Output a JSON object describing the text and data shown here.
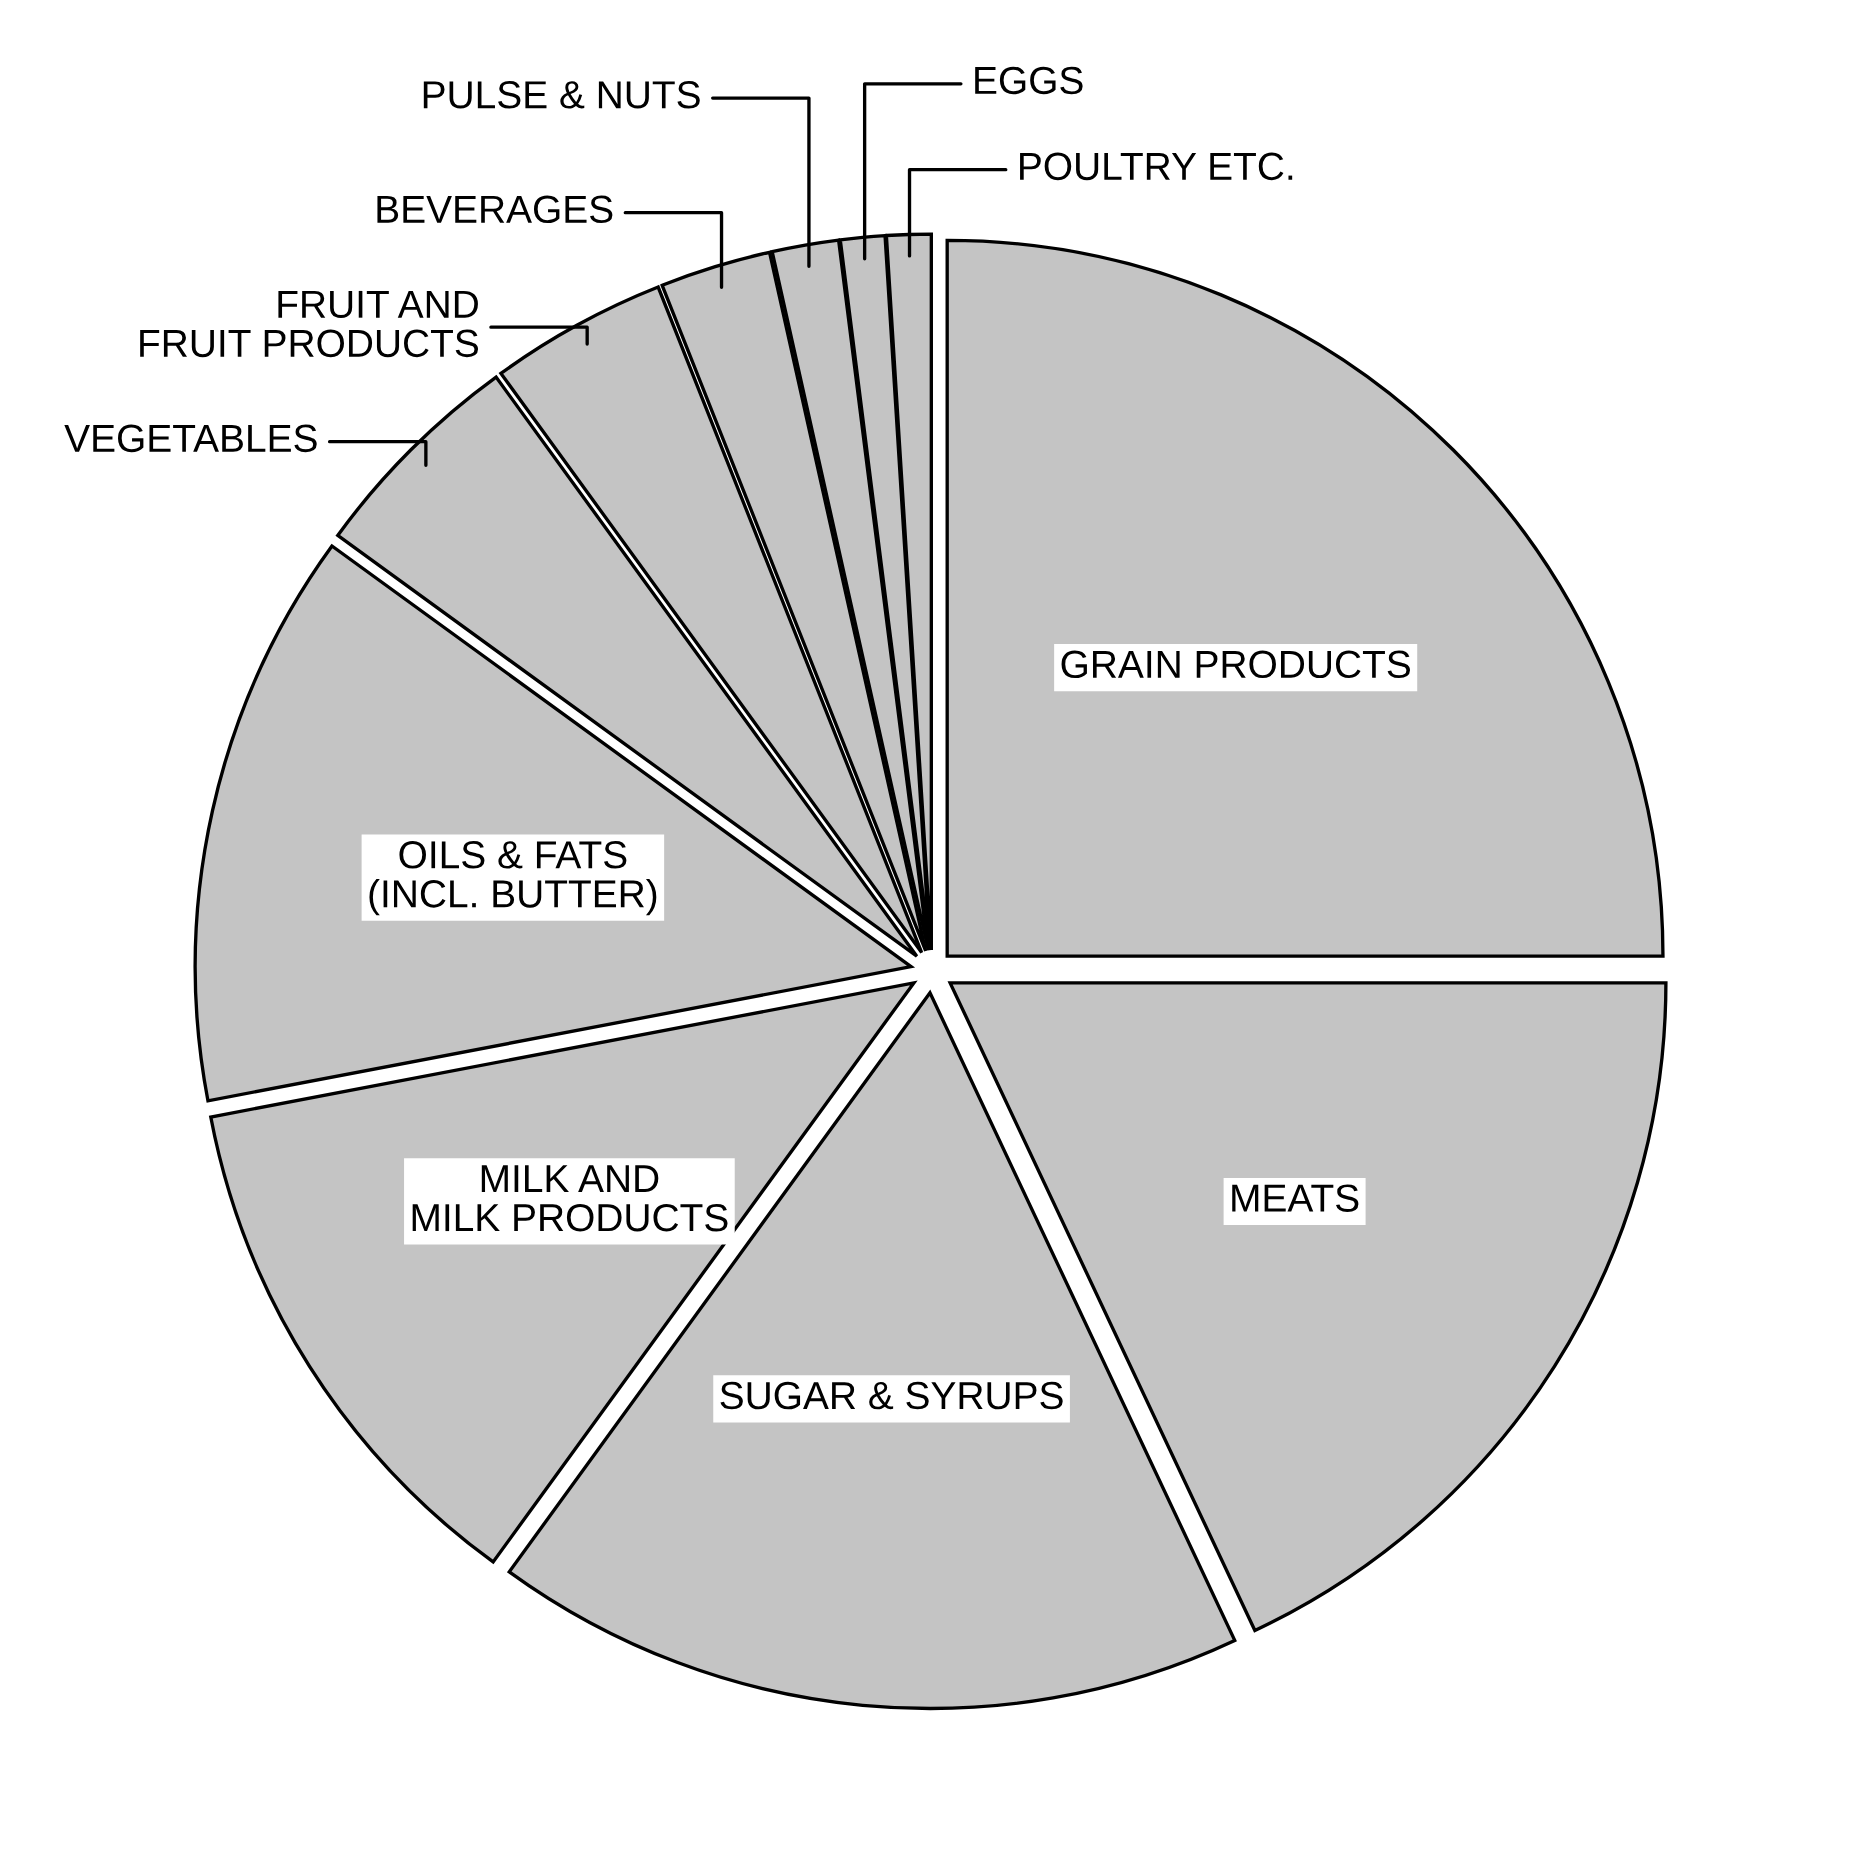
{
  "chart_data": {
    "type": "pie",
    "categories": [
      "GRAIN PRODUCTS",
      "MEATS",
      "SUGAR & SYRUPS",
      "MILK AND\nMILK PRODUCTS",
      "OILS & FATS\n(INCL. BUTTER)",
      "VEGETABLES",
      "FRUIT AND\nFRUIT PRODUCTS",
      "BEVERAGES",
      "PULSE & NUTS",
      "EGGS",
      "POULTRY ETC."
    ],
    "values": [
      25,
      18,
      17,
      12,
      13,
      5,
      4,
      2.5,
      1.5,
      1,
      1
    ],
    "colors": [
      "#c4c4c4",
      "#c4c4c4",
      "#c4c4c4",
      "#c4c4c4",
      "#c4c4c4",
      "#c4c4c4",
      "#c4c4c4",
      "#c4c4c4",
      "#c4c4c4",
      "#c4c4c4",
      "#c4c4c4"
    ]
  }
}
